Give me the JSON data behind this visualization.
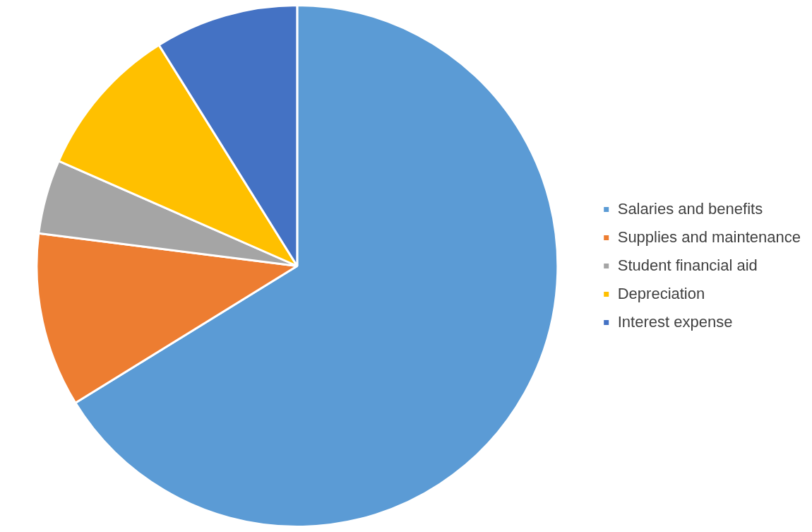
{
  "chart_data": {
    "type": "pie",
    "categories": [
      "Salaries and benefits",
      "Supplies and maintenance",
      "Student financial aid",
      "Depreciation",
      "Interest expense"
    ],
    "values": [
      66.2,
      10.8,
      4.6,
      9.5,
      8.9
    ],
    "colors": [
      "#5b9bd5",
      "#ed7d31",
      "#a5a5a5",
      "#ffc000",
      "#4472c4"
    ],
    "legend": "right"
  }
}
